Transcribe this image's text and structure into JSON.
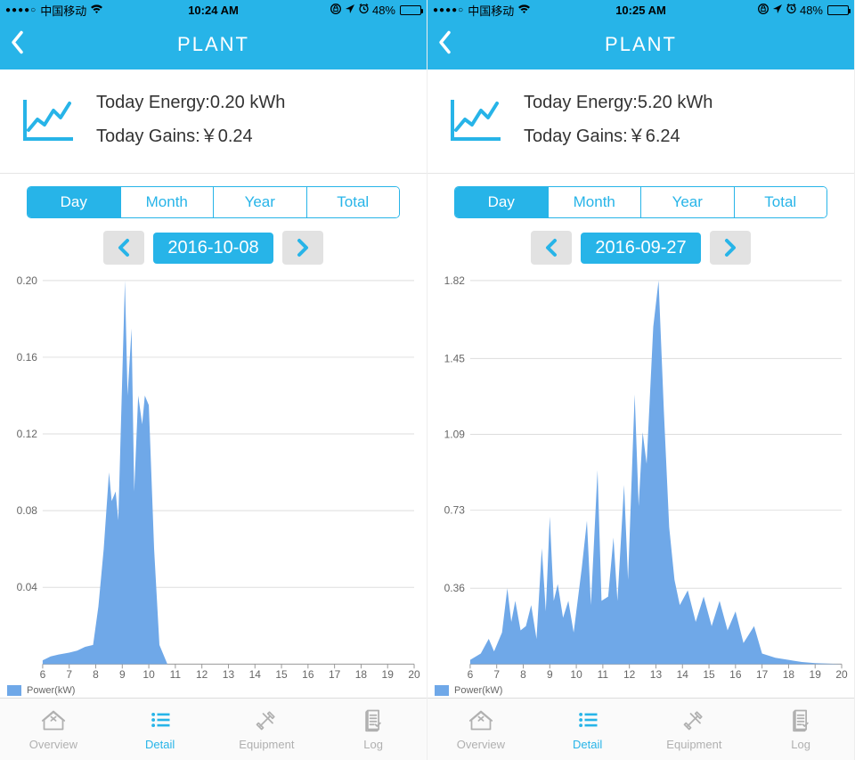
{
  "colors": {
    "accent": "#27b4e8",
    "chart_fill": "#6fa8e8",
    "grid": "#dddddd",
    "axis": "#999999",
    "text_axis": "#666666",
    "tab_inactive": "#b0b0b0",
    "background": "#ffffff",
    "date_btn_bg": "#e2e2e2"
  },
  "screens": [
    {
      "status_bar": {
        "carrier": "中国移动",
        "signal_dots": "●●●●○",
        "time": "10:24 AM",
        "lock_icon": "⊕",
        "location_icon": "➤",
        "alarm_icon": "⏰",
        "battery_pct_text": "48%",
        "battery_fill_pct": 48
      },
      "nav": {
        "title": "PLANT"
      },
      "summary": {
        "energy_label": "Today Energy:",
        "energy_value": "0.20 kWh",
        "gains_label": "Today Gains:",
        "gains_value": "￥0.24"
      },
      "segments": {
        "items": [
          "Day",
          "Month",
          "Year",
          "Total"
        ],
        "active_index": 0
      },
      "date_picker": {
        "label": "2016-10-08"
      },
      "chart": {
        "type": "area",
        "x_min": 6,
        "x_max": 20,
        "x_step": 1,
        "y_min": 0,
        "y_max": 0.2,
        "y_ticks": [
          0.04,
          0.08,
          0.12,
          0.16,
          0.2
        ],
        "legend_label": "Power(kW)",
        "fill_color": "#6fa8e8",
        "grid_color": "#dddddd",
        "background_color": "#ffffff",
        "axis_fontsize": 12,
        "series": [
          {
            "x": 6.0,
            "y": 0.002
          },
          {
            "x": 6.3,
            "y": 0.004
          },
          {
            "x": 6.6,
            "y": 0.005
          },
          {
            "x": 7.0,
            "y": 0.006
          },
          {
            "x": 7.3,
            "y": 0.007
          },
          {
            "x": 7.6,
            "y": 0.009
          },
          {
            "x": 7.9,
            "y": 0.01
          },
          {
            "x": 8.1,
            "y": 0.03
          },
          {
            "x": 8.3,
            "y": 0.06
          },
          {
            "x": 8.5,
            "y": 0.1
          },
          {
            "x": 8.6,
            "y": 0.085
          },
          {
            "x": 8.75,
            "y": 0.09
          },
          {
            "x": 8.85,
            "y": 0.075
          },
          {
            "x": 9.0,
            "y": 0.15
          },
          {
            "x": 9.1,
            "y": 0.2
          },
          {
            "x": 9.2,
            "y": 0.14
          },
          {
            "x": 9.35,
            "y": 0.175
          },
          {
            "x": 9.45,
            "y": 0.09
          },
          {
            "x": 9.6,
            "y": 0.14
          },
          {
            "x": 9.75,
            "y": 0.125
          },
          {
            "x": 9.85,
            "y": 0.14
          },
          {
            "x": 10.0,
            "y": 0.135
          },
          {
            "x": 10.2,
            "y": 0.06
          },
          {
            "x": 10.4,
            "y": 0.01
          },
          {
            "x": 10.7,
            "y": 0.0
          },
          {
            "x": 20.0,
            "y": 0.0
          }
        ]
      },
      "tabs": {
        "items": [
          {
            "key": "overview",
            "label": "Overview"
          },
          {
            "key": "detail",
            "label": "Detail"
          },
          {
            "key": "equipment",
            "label": "Equipment"
          },
          {
            "key": "log",
            "label": "Log"
          }
        ],
        "active_index": 1
      }
    },
    {
      "status_bar": {
        "carrier": "中国移动",
        "signal_dots": "●●●●○",
        "time": "10:25 AM",
        "lock_icon": "⊕",
        "location_icon": "➤",
        "alarm_icon": "⏰",
        "battery_pct_text": "48%",
        "battery_fill_pct": 48
      },
      "nav": {
        "title": "PLANT"
      },
      "summary": {
        "energy_label": "Today Energy:",
        "energy_value": "5.20 kWh",
        "gains_label": "Today Gains:",
        "gains_value": "￥6.24"
      },
      "segments": {
        "items": [
          "Day",
          "Month",
          "Year",
          "Total"
        ],
        "active_index": 0
      },
      "date_picker": {
        "label": "2016-09-27"
      },
      "chart": {
        "type": "area",
        "x_min": 6,
        "x_max": 20,
        "x_step": 1,
        "y_min": 0,
        "y_max": 1.82,
        "y_ticks": [
          0.36,
          0.73,
          1.09,
          1.45,
          1.82
        ],
        "legend_label": "Power(kW)",
        "fill_color": "#6fa8e8",
        "grid_color": "#dddddd",
        "background_color": "#ffffff",
        "axis_fontsize": 12,
        "series": [
          {
            "x": 6.0,
            "y": 0.02
          },
          {
            "x": 6.4,
            "y": 0.05
          },
          {
            "x": 6.7,
            "y": 0.12
          },
          {
            "x": 6.9,
            "y": 0.06
          },
          {
            "x": 7.2,
            "y": 0.15
          },
          {
            "x": 7.4,
            "y": 0.36
          },
          {
            "x": 7.55,
            "y": 0.2
          },
          {
            "x": 7.7,
            "y": 0.3
          },
          {
            "x": 7.9,
            "y": 0.16
          },
          {
            "x": 8.1,
            "y": 0.18
          },
          {
            "x": 8.3,
            "y": 0.28
          },
          {
            "x": 8.5,
            "y": 0.12
          },
          {
            "x": 8.7,
            "y": 0.55
          },
          {
            "x": 8.85,
            "y": 0.25
          },
          {
            "x": 9.0,
            "y": 0.7
          },
          {
            "x": 9.15,
            "y": 0.3
          },
          {
            "x": 9.3,
            "y": 0.38
          },
          {
            "x": 9.5,
            "y": 0.22
          },
          {
            "x": 9.7,
            "y": 0.3
          },
          {
            "x": 9.9,
            "y": 0.15
          },
          {
            "x": 10.2,
            "y": 0.45
          },
          {
            "x": 10.4,
            "y": 0.68
          },
          {
            "x": 10.55,
            "y": 0.28
          },
          {
            "x": 10.8,
            "y": 0.92
          },
          {
            "x": 10.95,
            "y": 0.3
          },
          {
            "x": 11.2,
            "y": 0.32
          },
          {
            "x": 11.4,
            "y": 0.6
          },
          {
            "x": 11.55,
            "y": 0.3
          },
          {
            "x": 11.8,
            "y": 0.85
          },
          {
            "x": 11.95,
            "y": 0.4
          },
          {
            "x": 12.2,
            "y": 1.28
          },
          {
            "x": 12.35,
            "y": 0.75
          },
          {
            "x": 12.5,
            "y": 1.1
          },
          {
            "x": 12.65,
            "y": 0.95
          },
          {
            "x": 12.9,
            "y": 1.6
          },
          {
            "x": 13.1,
            "y": 1.82
          },
          {
            "x": 13.3,
            "y": 1.2
          },
          {
            "x": 13.5,
            "y": 0.65
          },
          {
            "x": 13.7,
            "y": 0.4
          },
          {
            "x": 13.9,
            "y": 0.28
          },
          {
            "x": 14.2,
            "y": 0.35
          },
          {
            "x": 14.5,
            "y": 0.2
          },
          {
            "x": 14.8,
            "y": 0.32
          },
          {
            "x": 15.1,
            "y": 0.18
          },
          {
            "x": 15.4,
            "y": 0.3
          },
          {
            "x": 15.7,
            "y": 0.16
          },
          {
            "x": 16.0,
            "y": 0.25
          },
          {
            "x": 16.3,
            "y": 0.1
          },
          {
            "x": 16.7,
            "y": 0.18
          },
          {
            "x": 17.0,
            "y": 0.05
          },
          {
            "x": 17.5,
            "y": 0.03
          },
          {
            "x": 18.0,
            "y": 0.02
          },
          {
            "x": 18.5,
            "y": 0.01
          },
          {
            "x": 19.0,
            "y": 0.005
          },
          {
            "x": 20.0,
            "y": 0.0
          }
        ]
      },
      "tabs": {
        "items": [
          {
            "key": "overview",
            "label": "Overview"
          },
          {
            "key": "detail",
            "label": "Detail"
          },
          {
            "key": "equipment",
            "label": "Equipment"
          },
          {
            "key": "log",
            "label": "Log"
          }
        ],
        "active_index": 1
      }
    }
  ]
}
